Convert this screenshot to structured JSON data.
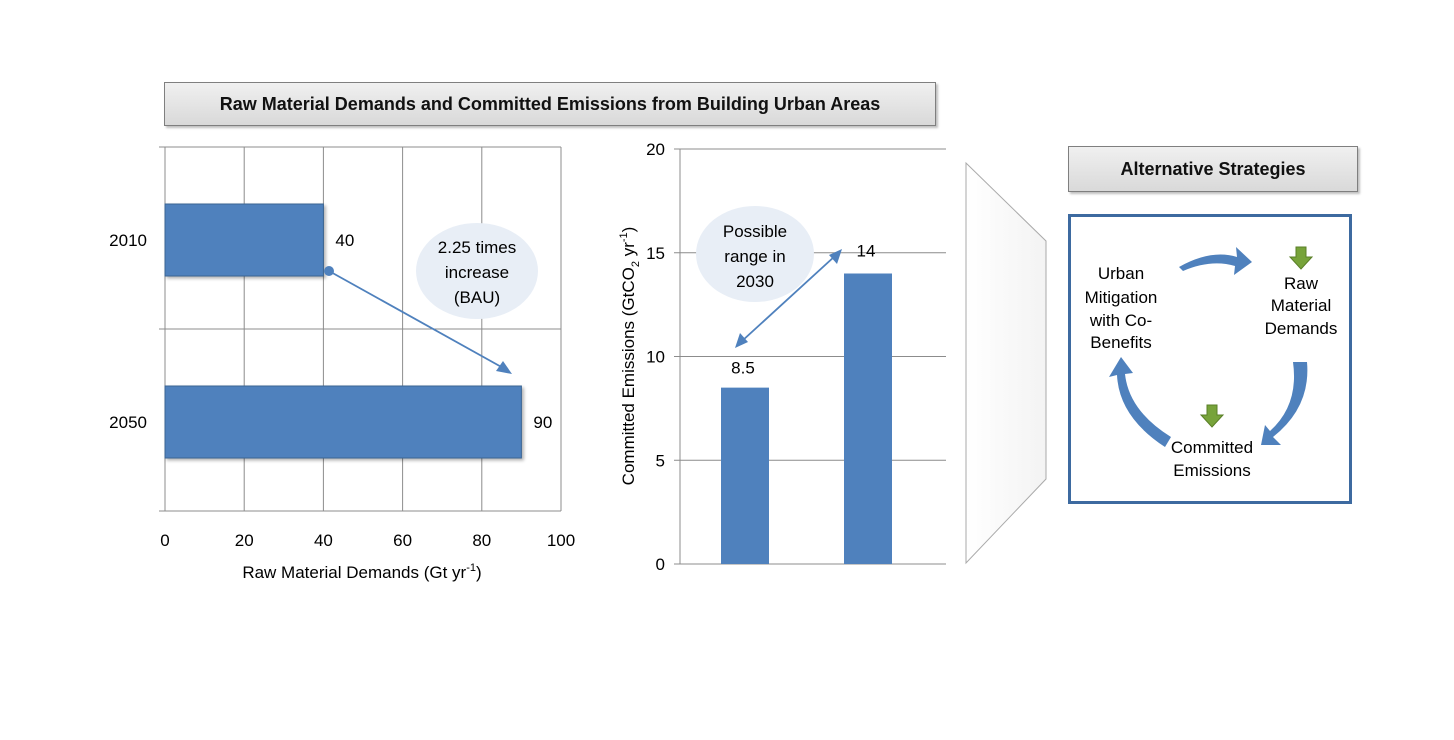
{
  "title": "Raw Material Demands and Committed Emissions from Building Urban Areas",
  "chart_data": [
    {
      "type": "bar",
      "orientation": "horizontal",
      "categories": [
        "2010",
        "2050"
      ],
      "values": [
        40,
        90
      ],
      "data_labels": [
        "40",
        "90"
      ],
      "xlabel": "Raw Material Demands (Gt yr",
      "xlabel_sup": "-1",
      "xlabel_end": ")",
      "xlim": [
        0,
        100
      ],
      "xticks": [
        "0",
        "20",
        "40",
        "60",
        "80",
        "100"
      ],
      "grid": true,
      "bar_color": "#4f81bd",
      "annotation": [
        "2.25 times",
        "increase",
        "(BAU)"
      ]
    },
    {
      "type": "bar",
      "orientation": "vertical",
      "values": [
        8.5,
        14
      ],
      "data_labels": [
        "8.5",
        "14"
      ],
      "ylabel": "Committed Emissions (GtCO",
      "ylabel_sub": "2",
      "ylabel_mid": " yr",
      "ylabel_sup": "-1",
      "ylabel_end": ")",
      "ylim": [
        0,
        20
      ],
      "yticks": [
        "0",
        "5",
        "10",
        "15",
        "20"
      ],
      "grid": true,
      "bar_color": "#4f81bd",
      "annotation": [
        "Possible",
        "range in",
        "2030"
      ]
    }
  ],
  "strategies": {
    "title": "Alternative Strategies",
    "urban": [
      "Urban",
      "Mitigation",
      "with Co-",
      "Benefits"
    ],
    "raw": [
      "Raw",
      "Material",
      "Demands"
    ],
    "committed": [
      "Committed",
      "Emissions"
    ],
    "arrow_color": "#4f81bd",
    "down_arrow_color": "#77a33a"
  }
}
